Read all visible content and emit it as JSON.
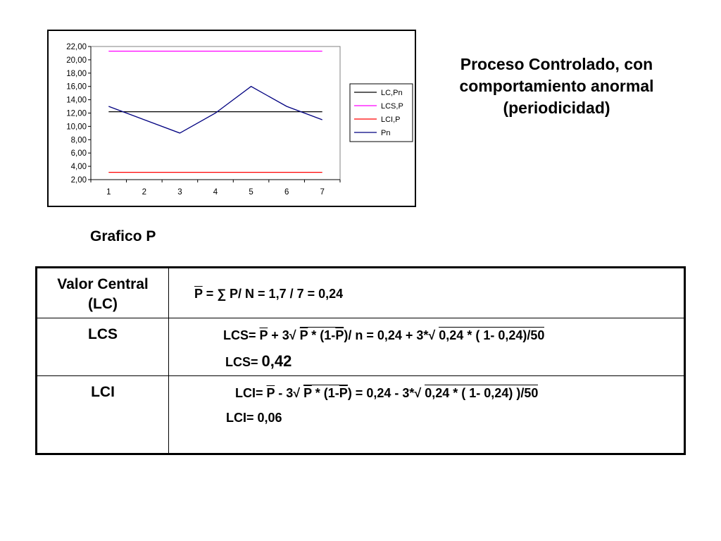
{
  "chart_data": {
    "type": "line",
    "categories": [
      "1",
      "2",
      "3",
      "4",
      "5",
      "6",
      "7"
    ],
    "ylim": [
      2,
      22
    ],
    "yticks": [
      "2,00",
      "4,00",
      "6,00",
      "8,00",
      "10,00",
      "12,00",
      "14,00",
      "16,00",
      "18,00",
      "20,00",
      "22,00"
    ],
    "grid": false,
    "legend_position": "right",
    "series": [
      {
        "name": "LC,Pn",
        "color": "#000000",
        "values": [
          12.2,
          12.2,
          12.2,
          12.2,
          12.2,
          12.2,
          12.2
        ]
      },
      {
        "name": "LCS,P",
        "color": "#ff00ff",
        "values": [
          21.3,
          21.3,
          21.3,
          21.3,
          21.3,
          21.3,
          21.3
        ]
      },
      {
        "name": "LCI,P",
        "color": "#ff0000",
        "values": [
          3.1,
          3.1,
          3.1,
          3.1,
          3.1,
          3.1,
          3.1
        ]
      },
      {
        "name": "Pn",
        "color": "#000080",
        "values": [
          13,
          11,
          9,
          12,
          16,
          13,
          11
        ]
      }
    ]
  },
  "heading": {
    "line1": "Proceso Controlado, con",
    "line2": "comportamiento anormal",
    "line3": "(periodicidad)"
  },
  "caption": "Grafico P",
  "rows": {
    "lc": {
      "label1": "Valor Central",
      "label2": "(LC)",
      "p": "P",
      "rest": " = ∑ P/ N = 1,7 / 7 = 0,24"
    },
    "lcs": {
      "label": "LCS",
      "f_a": "LCS= ",
      "f_p1": "P",
      "f_b": " + 3√ ",
      "f_p2": "P",
      "f_c": " * (1-",
      "f_p3": "P",
      "f_d": ")/ n = 0,24 + 3*√ ",
      "f_rad": "0,24 * ( 1- 0,24)/50",
      "res_label": "LCS= ",
      "res_value": "0,42"
    },
    "lci": {
      "label": "LCI",
      "f_a": "LCI= ",
      "f_p1": "P",
      "f_b": " - 3√ ",
      "f_p2": "P",
      "f_c": " * (1-",
      "f_p3": "P",
      "f_d": ") = 0,24 - 3*√ ",
      "f_rad": "0,24 * ( 1- 0,24) )/50",
      "res": "LCI= 0,06"
    }
  }
}
